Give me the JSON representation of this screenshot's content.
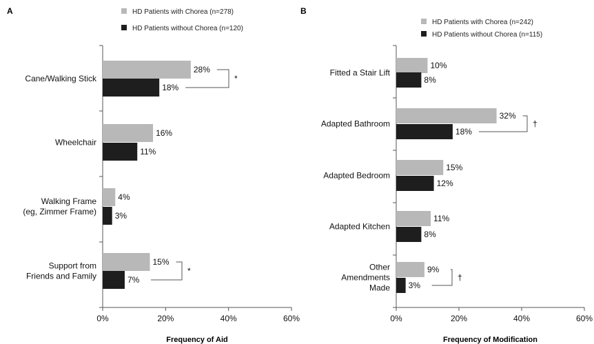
{
  "colors": {
    "with": "#b8b8b8",
    "without": "#1e1e1e",
    "axis": "#555555",
    "bracket": "#555555"
  },
  "chart_data": [
    {
      "type": "bar",
      "orientation": "horizontal",
      "panel": "A",
      "xlabel": "Frequency of Aid",
      "ylabel": "",
      "xlim": [
        0,
        60
      ],
      "ticks": [
        "0%",
        "20%",
        "40%",
        "60%"
      ],
      "tick_values": [
        0,
        20,
        40,
        60
      ],
      "legend": "top-center",
      "categories": [
        [
          "Cane/Walking Stick"
        ],
        [
          "Wheelchair"
        ],
        [
          "Walking Frame",
          "(eg, Zimmer Frame)"
        ],
        [
          "Support from",
          "Friends and Family"
        ]
      ],
      "series": [
        {
          "name": "HD Patients with Chorea (n=278)",
          "values": [
            28,
            16,
            4,
            15
          ],
          "labels": [
            "28%",
            "16%",
            "4%",
            "15%"
          ]
        },
        {
          "name": "HD Patients without Chorea (n=120)",
          "values": [
            18,
            11,
            3,
            7
          ],
          "labels": [
            "18%",
            "11%",
            "3%",
            "7%"
          ]
        }
      ],
      "significance": [
        "*",
        "",
        "",
        "*"
      ]
    },
    {
      "type": "bar",
      "orientation": "horizontal",
      "panel": "B",
      "xlabel": "Frequency of Modification",
      "ylabel": "",
      "xlim": [
        0,
        60
      ],
      "ticks": [
        "0%",
        "20%",
        "40%",
        "60%"
      ],
      "tick_values": [
        0,
        20,
        40,
        60
      ],
      "legend": "top-center",
      "categories": [
        [
          "Fitted a Stair Lift"
        ],
        [
          "Adapted Bathroom"
        ],
        [
          "Adapted Bedroom"
        ],
        [
          "Adapted Kitchen"
        ],
        [
          "Other",
          "Amendments",
          "Made"
        ]
      ],
      "series": [
        {
          "name": "HD Patients with Chorea (n=242)",
          "values": [
            10,
            32,
            15,
            11,
            9
          ],
          "labels": [
            "10%",
            "32%",
            "15%",
            "11%",
            "9%"
          ]
        },
        {
          "name": "HD Patients without Chorea (n=115)",
          "values": [
            8,
            18,
            12,
            8,
            3
          ],
          "labels": [
            "8%",
            "18%",
            "12%",
            "8%",
            "3%"
          ]
        }
      ],
      "significance": [
        "",
        "†",
        "",
        "",
        "†"
      ]
    }
  ]
}
